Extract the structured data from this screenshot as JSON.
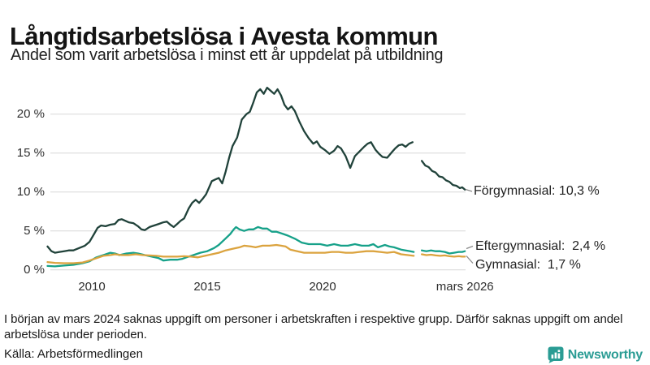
{
  "header": {
    "title": "Långtidsarbetslösa i Avesta kommun",
    "subtitle": "Andel som varit arbetslösa i minst ett år uppdelat på utbildning"
  },
  "chart_data": {
    "type": "line",
    "title": "Långtidsarbetslösa i Avesta kommun",
    "subtitle": "Andel som varit arbetslösa i minst ett år uppdelat på utbildning",
    "unit": "%",
    "grid": true,
    "ylim": [
      0,
      24
    ],
    "x_range": [
      2008.08,
      2026.17
    ],
    "y_ticks": [
      {
        "value": 0,
        "label": "0 %"
      },
      {
        "value": 5,
        "label": "5 %"
      },
      {
        "value": 10,
        "label": "10 %"
      },
      {
        "value": 15,
        "label": "15 %"
      },
      {
        "value": 20,
        "label": "20 %"
      }
    ],
    "x_ticks": [
      {
        "year": 2010,
        "label": "2010"
      },
      {
        "year": 2015,
        "label": "2015"
      },
      {
        "year": 2020,
        "label": "2020"
      },
      {
        "year": 2026.17,
        "label": "mars 2026"
      }
    ],
    "data_gap": {
      "start": 2024.0,
      "end": 2024.25,
      "note": "uppgift saknas från mars 2024"
    },
    "series": [
      {
        "name": "Förgymnasial",
        "color": "#20423a",
        "end_label": "Förgymnasial: 10,3 %",
        "final_value": 10.3,
        "points_before_gap": [
          [
            2008.08,
            3.0
          ],
          [
            2008.25,
            2.4
          ],
          [
            2008.4,
            2.2
          ],
          [
            2008.6,
            2.3
          ],
          [
            2008.8,
            2.4
          ],
          [
            2009.0,
            2.5
          ],
          [
            2009.2,
            2.5
          ],
          [
            2009.45,
            2.8
          ],
          [
            2009.7,
            3.1
          ],
          [
            2009.9,
            3.6
          ],
          [
            2010.1,
            4.6
          ],
          [
            2010.25,
            5.4
          ],
          [
            2010.4,
            5.7
          ],
          [
            2010.6,
            5.6
          ],
          [
            2010.8,
            5.8
          ],
          [
            2011.0,
            5.9
          ],
          [
            2011.15,
            6.4
          ],
          [
            2011.3,
            6.5
          ],
          [
            2011.45,
            6.3
          ],
          [
            2011.6,
            6.1
          ],
          [
            2011.8,
            6.0
          ],
          [
            2012.0,
            5.6
          ],
          [
            2012.15,
            5.2
          ],
          [
            2012.3,
            5.1
          ],
          [
            2012.5,
            5.5
          ],
          [
            2012.7,
            5.7
          ],
          [
            2012.9,
            5.9
          ],
          [
            2013.1,
            6.1
          ],
          [
            2013.25,
            6.2
          ],
          [
            2013.4,
            5.8
          ],
          [
            2013.55,
            5.5
          ],
          [
            2013.7,
            5.9
          ],
          [
            2013.85,
            6.3
          ],
          [
            2014.0,
            6.6
          ],
          [
            2014.2,
            7.9
          ],
          [
            2014.35,
            8.6
          ],
          [
            2014.5,
            9.0
          ],
          [
            2014.65,
            8.6
          ],
          [
            2014.8,
            9.1
          ],
          [
            2014.95,
            9.7
          ],
          [
            2015.1,
            10.7
          ],
          [
            2015.2,
            11.4
          ],
          [
            2015.35,
            11.6
          ],
          [
            2015.5,
            11.8
          ],
          [
            2015.65,
            11.1
          ],
          [
            2015.8,
            12.6
          ],
          [
            2015.95,
            14.4
          ],
          [
            2016.1,
            15.9
          ],
          [
            2016.3,
            17.0
          ],
          [
            2016.5,
            19.3
          ],
          [
            2016.7,
            20.0
          ],
          [
            2016.85,
            20.3
          ],
          [
            2017.0,
            21.5
          ],
          [
            2017.15,
            22.8
          ],
          [
            2017.3,
            23.2
          ],
          [
            2017.45,
            22.6
          ],
          [
            2017.6,
            23.4
          ],
          [
            2017.75,
            23.0
          ],
          [
            2017.9,
            22.6
          ],
          [
            2018.05,
            23.2
          ],
          [
            2018.2,
            22.4
          ],
          [
            2018.35,
            21.2
          ],
          [
            2018.5,
            20.6
          ],
          [
            2018.65,
            21.0
          ],
          [
            2018.8,
            20.4
          ],
          [
            2019.0,
            19.0
          ],
          [
            2019.2,
            17.8
          ],
          [
            2019.4,
            16.9
          ],
          [
            2019.6,
            16.2
          ],
          [
            2019.75,
            16.5
          ],
          [
            2019.9,
            15.8
          ],
          [
            2020.1,
            15.4
          ],
          [
            2020.3,
            14.9
          ],
          [
            2020.5,
            15.3
          ],
          [
            2020.65,
            15.9
          ],
          [
            2020.8,
            15.6
          ],
          [
            2021.0,
            14.6
          ],
          [
            2021.2,
            13.1
          ],
          [
            2021.4,
            14.6
          ],
          [
            2021.6,
            15.2
          ],
          [
            2021.8,
            15.8
          ],
          [
            2021.95,
            16.2
          ],
          [
            2022.1,
            16.4
          ],
          [
            2022.3,
            15.4
          ],
          [
            2022.45,
            14.9
          ],
          [
            2022.6,
            14.5
          ],
          [
            2022.8,
            14.4
          ],
          [
            2023.0,
            15.1
          ],
          [
            2023.15,
            15.6
          ],
          [
            2023.3,
            16.0
          ],
          [
            2023.45,
            16.1
          ],
          [
            2023.6,
            15.8
          ],
          [
            2023.75,
            16.2
          ],
          [
            2023.9,
            16.4
          ]
        ],
        "points_after_gap": [
          [
            2024.3,
            14.0
          ],
          [
            2024.45,
            13.4
          ],
          [
            2024.6,
            13.2
          ],
          [
            2024.75,
            12.7
          ],
          [
            2024.9,
            12.5
          ],
          [
            2025.05,
            12.0
          ],
          [
            2025.2,
            11.9
          ],
          [
            2025.35,
            11.5
          ],
          [
            2025.5,
            11.3
          ],
          [
            2025.65,
            10.9
          ],
          [
            2025.8,
            10.8
          ],
          [
            2025.95,
            10.5
          ],
          [
            2026.05,
            10.6
          ],
          [
            2026.17,
            10.3
          ]
        ]
      },
      {
        "name": "Eftergymnasial",
        "color": "#16a189",
        "end_label": "Eftergymnasial:  2,4 %",
        "final_value": 2.4,
        "points_before_gap": [
          [
            2008.08,
            0.5
          ],
          [
            2008.4,
            0.45
          ],
          [
            2008.8,
            0.55
          ],
          [
            2009.2,
            0.65
          ],
          [
            2009.6,
            0.85
          ],
          [
            2009.9,
            1.1
          ],
          [
            2010.2,
            1.6
          ],
          [
            2010.5,
            1.9
          ],
          [
            2010.8,
            2.2
          ],
          [
            2011.0,
            2.1
          ],
          [
            2011.2,
            1.9
          ],
          [
            2011.5,
            2.1
          ],
          [
            2011.8,
            2.2
          ],
          [
            2012.0,
            2.1
          ],
          [
            2012.3,
            1.9
          ],
          [
            2012.6,
            1.7
          ],
          [
            2012.9,
            1.5
          ],
          [
            2013.1,
            1.2
          ],
          [
            2013.4,
            1.3
          ],
          [
            2013.7,
            1.3
          ],
          [
            2013.9,
            1.4
          ],
          [
            2014.1,
            1.6
          ],
          [
            2014.4,
            1.9
          ],
          [
            2014.7,
            2.2
          ],
          [
            2015.0,
            2.4
          ],
          [
            2015.3,
            2.8
          ],
          [
            2015.5,
            3.2
          ],
          [
            2015.75,
            3.9
          ],
          [
            2016.0,
            4.6
          ],
          [
            2016.15,
            5.2
          ],
          [
            2016.25,
            5.5
          ],
          [
            2016.4,
            5.2
          ],
          [
            2016.6,
            5.0
          ],
          [
            2016.8,
            5.2
          ],
          [
            2017.0,
            5.2
          ],
          [
            2017.2,
            5.5
          ],
          [
            2017.4,
            5.3
          ],
          [
            2017.6,
            5.3
          ],
          [
            2017.8,
            4.9
          ],
          [
            2018.0,
            4.9
          ],
          [
            2018.3,
            4.6
          ],
          [
            2018.5,
            4.4
          ],
          [
            2018.8,
            4.0
          ],
          [
            2019.1,
            3.5
          ],
          [
            2019.4,
            3.3
          ],
          [
            2019.7,
            3.3
          ],
          [
            2019.9,
            3.3
          ],
          [
            2020.2,
            3.1
          ],
          [
            2020.5,
            3.3
          ],
          [
            2020.8,
            3.1
          ],
          [
            2021.1,
            3.1
          ],
          [
            2021.4,
            3.3
          ],
          [
            2021.7,
            3.1
          ],
          [
            2022.0,
            3.1
          ],
          [
            2022.2,
            3.3
          ],
          [
            2022.4,
            2.9
          ],
          [
            2022.7,
            3.2
          ],
          [
            2022.9,
            3.0
          ],
          [
            2023.1,
            2.9
          ],
          [
            2023.4,
            2.6
          ],
          [
            2023.6,
            2.5
          ],
          [
            2023.8,
            2.4
          ],
          [
            2023.95,
            2.3
          ]
        ],
        "points_after_gap": [
          [
            2024.3,
            2.5
          ],
          [
            2024.5,
            2.4
          ],
          [
            2024.7,
            2.5
          ],
          [
            2024.9,
            2.4
          ],
          [
            2025.1,
            2.4
          ],
          [
            2025.3,
            2.3
          ],
          [
            2025.5,
            2.1
          ],
          [
            2025.7,
            2.2
          ],
          [
            2025.9,
            2.3
          ],
          [
            2026.05,
            2.3
          ],
          [
            2026.17,
            2.4
          ]
        ]
      },
      {
        "name": "Gymnasial",
        "color": "#dba33e",
        "end_label": "Gymnasial:  1,7 %",
        "final_value": 1.7,
        "points_before_gap": [
          [
            2008.08,
            1.0
          ],
          [
            2008.4,
            0.9
          ],
          [
            2008.8,
            0.85
          ],
          [
            2009.2,
            0.85
          ],
          [
            2009.6,
            0.95
          ],
          [
            2009.9,
            1.2
          ],
          [
            2010.2,
            1.5
          ],
          [
            2010.5,
            1.8
          ],
          [
            2010.8,
            1.9
          ],
          [
            2011.0,
            2.0
          ],
          [
            2011.3,
            1.9
          ],
          [
            2011.6,
            1.9
          ],
          [
            2011.9,
            2.0
          ],
          [
            2012.2,
            1.9
          ],
          [
            2012.5,
            1.85
          ],
          [
            2012.8,
            1.8
          ],
          [
            2013.1,
            1.7
          ],
          [
            2013.4,
            1.7
          ],
          [
            2013.7,
            1.7
          ],
          [
            2014.0,
            1.75
          ],
          [
            2014.3,
            1.7
          ],
          [
            2014.6,
            1.6
          ],
          [
            2014.9,
            1.8
          ],
          [
            2015.2,
            2.0
          ],
          [
            2015.5,
            2.2
          ],
          [
            2015.8,
            2.5
          ],
          [
            2016.1,
            2.7
          ],
          [
            2016.4,
            2.9
          ],
          [
            2016.6,
            3.1
          ],
          [
            2016.9,
            3.0
          ],
          [
            2017.1,
            2.9
          ],
          [
            2017.4,
            3.1
          ],
          [
            2017.7,
            3.1
          ],
          [
            2018.0,
            3.2
          ],
          [
            2018.2,
            3.1
          ],
          [
            2018.4,
            3.0
          ],
          [
            2018.6,
            2.6
          ],
          [
            2018.9,
            2.4
          ],
          [
            2019.2,
            2.2
          ],
          [
            2019.5,
            2.2
          ],
          [
            2019.8,
            2.2
          ],
          [
            2020.1,
            2.2
          ],
          [
            2020.4,
            2.3
          ],
          [
            2020.7,
            2.3
          ],
          [
            2021.0,
            2.2
          ],
          [
            2021.3,
            2.2
          ],
          [
            2021.6,
            2.3
          ],
          [
            2021.9,
            2.4
          ],
          [
            2022.2,
            2.4
          ],
          [
            2022.5,
            2.3
          ],
          [
            2022.8,
            2.2
          ],
          [
            2023.1,
            2.3
          ],
          [
            2023.4,
            2.0
          ],
          [
            2023.7,
            1.9
          ],
          [
            2023.95,
            1.8
          ]
        ],
        "points_after_gap": [
          [
            2024.3,
            2.0
          ],
          [
            2024.5,
            1.9
          ],
          [
            2024.7,
            1.95
          ],
          [
            2024.9,
            1.85
          ],
          [
            2025.1,
            1.8
          ],
          [
            2025.3,
            1.85
          ],
          [
            2025.5,
            1.75
          ],
          [
            2025.7,
            1.7
          ],
          [
            2025.9,
            1.75
          ],
          [
            2026.05,
            1.7
          ],
          [
            2026.17,
            1.7
          ]
        ]
      }
    ]
  },
  "footer": {
    "footnote": "I början av mars 2024 saknas uppgift om personer i arbetskraften i respektive grupp. Därför saknas uppgift om andel arbetslösa under perioden.",
    "source": "Källa: Arbetsförmedlingen",
    "brand": "Newsworthy"
  },
  "colors": {
    "forgymnasial": "#20423a",
    "eftergymnasial": "#16a189",
    "gymnasial": "#dba33e",
    "gridline": "#dcdcdc",
    "brand_teal": "#2a9c94"
  }
}
